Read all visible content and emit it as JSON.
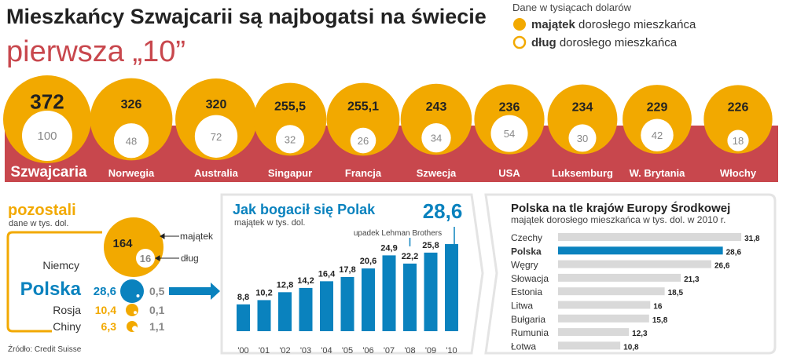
{
  "title": "Mieszkańcy Szwajcarii są najbogatsi na świecie",
  "subtitle": "pierwsza „10”",
  "legend": {
    "header": "Dane w tysiącach dolarów",
    "wealth_bold": "majątek",
    "wealth_rest": "dorosłego mieszkańca",
    "debt_bold": "dług",
    "debt_rest": "dorosłego mieszkańca"
  },
  "colors": {
    "wealth": "#f2a900",
    "band": "#c8474d",
    "poland": "#0a82be",
    "gray_bar": "#d9d9d9"
  },
  "source": "Źródło: Credit Suisse",
  "chart_data": [
    {
      "type": "bubble",
      "categories": [
        "Szwajcaria",
        "Norwegia",
        "Australia",
        "Singapur",
        "Francja",
        "Szwecja",
        "USA",
        "Luksemburg",
        "W. Brytania",
        "Włochy"
      ],
      "series": [
        {
          "name": "majątek",
          "values": [
            "372",
            "326",
            "320",
            "255,5",
            "255,1",
            "243",
            "236",
            "234",
            "229",
            "226"
          ]
        },
        {
          "name": "dług",
          "values": [
            "100",
            "48",
            "72",
            "32",
            "26",
            "34",
            "54",
            "30",
            "42",
            "18"
          ]
        }
      ]
    },
    {
      "type": "bubble",
      "title": "pozostali",
      "subtitle": "dane w tys. dol.",
      "annot_wealth": "majątek",
      "annot_debt": "dług",
      "categories": [
        "Niemcy",
        "Polska",
        "Rosja",
        "Chiny"
      ],
      "series": [
        {
          "name": "majątek",
          "values": [
            "164",
            "28,6",
            "10,4",
            "6,3"
          ]
        },
        {
          "name": "dług",
          "values": [
            "16",
            "0,5",
            "0,1",
            "1,1"
          ]
        }
      ]
    },
    {
      "type": "bar",
      "title": "Jak bogacił się Polak",
      "subtitle": "majątek w tys. dol.",
      "annotation": "upadek Lehman Brothers",
      "categories": [
        "'00",
        "'01",
        "'02",
        "'03",
        "'04",
        "'05",
        "'06",
        "'07",
        "'08",
        "'09",
        "'10"
      ],
      "values": [
        "8,8",
        "10,2",
        "12,8",
        "14,2",
        "16,4",
        "17,8",
        "20,6",
        "24,9",
        "22,2",
        "25,8",
        "28,6"
      ]
    },
    {
      "type": "bar",
      "orientation": "horizontal",
      "title": "Polska na tle krajów Europy Środkowej",
      "subtitle": "majątek dorosłego mieszkańca w tys. dol. w 2010 r.",
      "categories": [
        "Czechy",
        "Polska",
        "Węgry",
        "Słowacja",
        "Estonia",
        "Litwa",
        "Bułgaria",
        "Rumunia",
        "Łotwa"
      ],
      "values": [
        "31,8",
        "28,6",
        "26,6",
        "21,3",
        "18,5",
        "16",
        "15,8",
        "12,3",
        "10,8"
      ]
    }
  ]
}
